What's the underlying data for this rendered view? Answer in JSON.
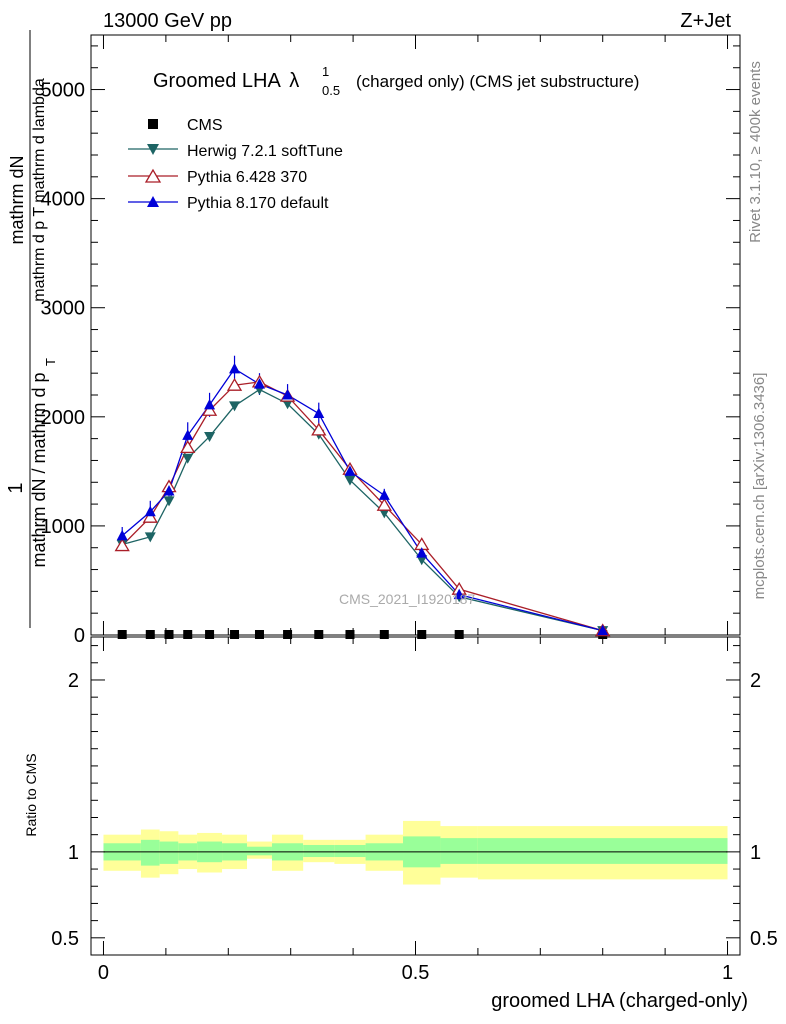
{
  "header": {
    "left": "13000 GeV pp",
    "right": "Z+Jet"
  },
  "side_labels": {
    "rivet": "Rivet 3.1.10, ≥ 400k events",
    "mcplots": "mcplots.cern.ch [arXiv:1306.3436]"
  },
  "watermark": "CMS_2021_I1920187",
  "colors": {
    "cms": "#000000",
    "herwig": "#1d6464",
    "pythia6": "#aa1e28",
    "pythia8": "#0000d8",
    "band_inner": "#99ff99",
    "band_outer": "#ffff99"
  },
  "chart_data": [
    {
      "type": "line",
      "title": "Groomed LHA",
      "title_symbol": "λ",
      "title_sup": "1",
      "title_sub": "0.5",
      "title_suffix": "(charged only) (CMS jet substructure)",
      "ylabel_num": "1",
      "ylabel_num_full": "mathrm dN",
      "ylabel_num_sub": "mathrm d p T mathrm d lambda",
      "ylabel_den": "mathrm dN / mathrm d p T mathrm d p T",
      "ylabel_den_full": "mathrm dN / mathrm d p",
      "ylabel_den_sub": "T",
      "ylim": [
        0,
        5500
      ],
      "xlim": [
        -0.02,
        1.02
      ],
      "yticks": [
        0,
        1000,
        2000,
        3000,
        4000,
        5000
      ],
      "ytick_labels": [
        "0",
        "1000",
        "2000",
        "3000",
        "4000",
        "5000"
      ],
      "x": [
        0.03,
        0.075,
        0.105,
        0.135,
        0.17,
        0.21,
        0.25,
        0.295,
        0.345,
        0.395,
        0.45,
        0.51,
        0.57,
        0.8
      ],
      "bins": [
        [
          0.0,
          0.06
        ],
        [
          0.06,
          0.09
        ],
        [
          0.09,
          0.12
        ],
        [
          0.12,
          0.15
        ],
        [
          0.15,
          0.19
        ],
        [
          0.19,
          0.23
        ],
        [
          0.23,
          0.27
        ],
        [
          0.27,
          0.32
        ],
        [
          0.32,
          0.37
        ],
        [
          0.37,
          0.42
        ],
        [
          0.42,
          0.48
        ],
        [
          0.48,
          0.54
        ],
        [
          0.54,
          0.6
        ],
        [
          0.6,
          1.0
        ]
      ],
      "series": [
        {
          "name": "CMS",
          "marker": "square",
          "values": [
            0,
            0,
            0,
            0,
            0,
            0,
            0,
            0,
            0,
            0,
            0,
            0,
            0,
            0
          ]
        },
        {
          "name": "Herwig 7.2.1 softTune",
          "marker": "triangle-down",
          "values": [
            830,
            900,
            1230,
            1620,
            1820,
            2100,
            2250,
            2120,
            1840,
            1420,
            1120,
            690,
            350,
            40
          ]
        },
        {
          "name": "Pythia 6.428 370",
          "marker": "triangle-up-open",
          "values": [
            820,
            1080,
            1360,
            1720,
            2060,
            2290,
            2320,
            2190,
            1880,
            1520,
            1190,
            830,
            420,
            40
          ]
        },
        {
          "name": "Pythia 8.170 default",
          "marker": "triangle-up",
          "values": [
            910,
            1130,
            1320,
            1830,
            2110,
            2440,
            2300,
            2200,
            2030,
            1500,
            1280,
            750,
            370,
            40
          ]
        }
      ],
      "errors_pythia8": [
        80,
        100,
        80,
        120,
        110,
        120,
        100,
        100,
        100,
        60,
        60,
        40,
        30,
        10
      ]
    },
    {
      "type": "area",
      "ylabel": "Ratio to CMS",
      "xlabel": "groomed LHA (charged-only)",
      "ylim": [
        0.4,
        2.25
      ],
      "xticks": [
        0,
        0.5,
        1
      ],
      "xtick_labels": [
        "0",
        "0.5",
        "1"
      ],
      "yticks": [
        0.5,
        1,
        2
      ],
      "ytick_labels": [
        "0.5",
        "1",
        "2"
      ],
      "bins": [
        [
          0.0,
          0.06
        ],
        [
          0.06,
          0.09
        ],
        [
          0.09,
          0.12
        ],
        [
          0.12,
          0.15
        ],
        [
          0.15,
          0.19
        ],
        [
          0.19,
          0.23
        ],
        [
          0.23,
          0.27
        ],
        [
          0.27,
          0.32
        ],
        [
          0.32,
          0.37
        ],
        [
          0.37,
          0.42
        ],
        [
          0.42,
          0.48
        ],
        [
          0.48,
          0.54
        ],
        [
          0.54,
          0.6
        ],
        [
          0.6,
          1.0
        ]
      ],
      "inner_band": [
        [
          0.95,
          1.05
        ],
        [
          0.92,
          1.07
        ],
        [
          0.93,
          1.06
        ],
        [
          0.95,
          1.05
        ],
        [
          0.94,
          1.06
        ],
        [
          0.95,
          1.05
        ],
        [
          0.98,
          1.03
        ],
        [
          0.95,
          1.05
        ],
        [
          0.97,
          1.04
        ],
        [
          0.97,
          1.04
        ],
        [
          0.95,
          1.05
        ],
        [
          0.91,
          1.09
        ],
        [
          0.93,
          1.08
        ],
        [
          0.93,
          1.08
        ]
      ],
      "outer_band": [
        [
          0.89,
          1.1
        ],
        [
          0.85,
          1.13
        ],
        [
          0.87,
          1.12
        ],
        [
          0.9,
          1.1
        ],
        [
          0.88,
          1.11
        ],
        [
          0.9,
          1.1
        ],
        [
          0.96,
          1.06
        ],
        [
          0.89,
          1.1
        ],
        [
          0.94,
          1.07
        ],
        [
          0.93,
          1.07
        ],
        [
          0.89,
          1.1
        ],
        [
          0.81,
          1.18
        ],
        [
          0.85,
          1.15
        ],
        [
          0.84,
          1.15
        ]
      ],
      "reference": 1
    }
  ]
}
